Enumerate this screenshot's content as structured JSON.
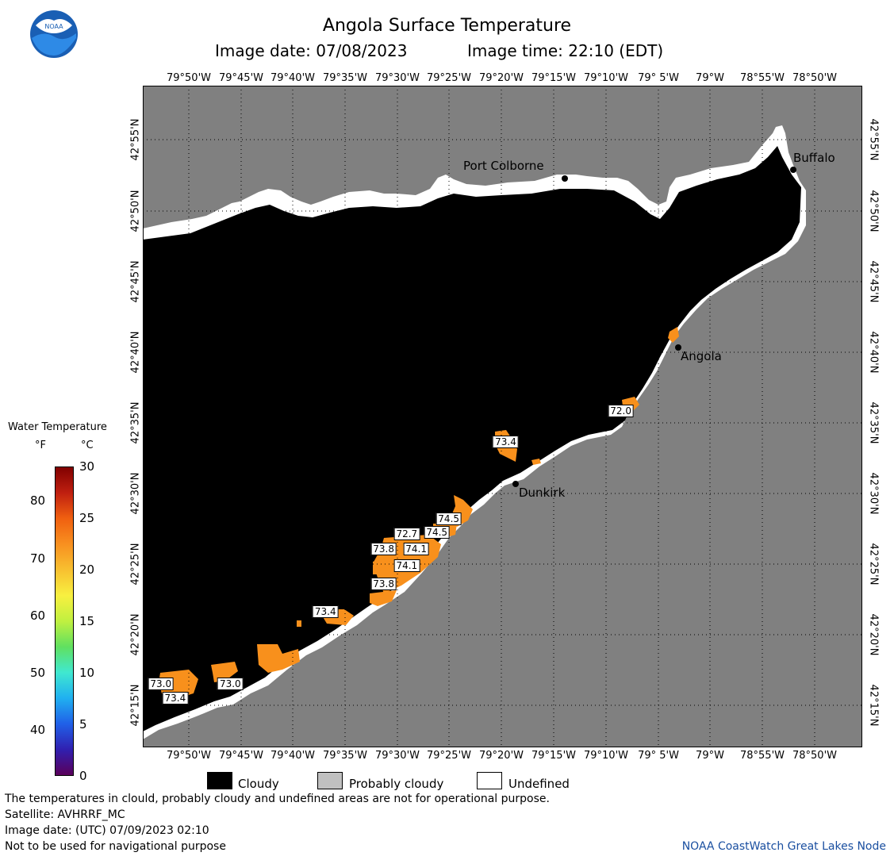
{
  "logo": {
    "text": "NOAA"
  },
  "title": "Angola Surface Temperature",
  "subtitle_date": "Image date: 07/08/2023",
  "subtitle_time": "Image time: 22:10 (EDT)",
  "lon_ticks": [
    "79°50'W",
    "79°45'W",
    "79°40'W",
    "79°35'W",
    "79°30'W",
    "79°25'W",
    "79°20'W",
    "79°15'W",
    "79°10'W",
    "79° 5'W",
    "79°W",
    "78°55'W",
    "78°50'W"
  ],
  "lat_ticks": [
    "42°55'N",
    "42°50'N",
    "42°45'N",
    "42°40'N",
    "42°35'N",
    "42°30'N",
    "42°25'N",
    "42°20'N",
    "42°15'N"
  ],
  "cities": {
    "port_colborne": "Port Colborne",
    "buffalo": "Buffalo",
    "angola": "Angola",
    "dunkirk": "Dunkirk"
  },
  "temperature_labels": [
    {
      "value": "73.4",
      "lon": -79.327,
      "lat": 42.56
    },
    {
      "value": "72.0",
      "lon": -79.143,
      "lat": 42.597
    },
    {
      "value": "74.5",
      "lon": -79.418,
      "lat": 42.47
    },
    {
      "value": "74.5",
      "lon": -79.437,
      "lat": 42.454
    },
    {
      "value": "72.7",
      "lon": -79.485,
      "lat": 42.452
    },
    {
      "value": "73.8",
      "lon": -79.522,
      "lat": 42.434
    },
    {
      "value": "74.1",
      "lon": -79.47,
      "lat": 42.434
    },
    {
      "value": "74.1",
      "lon": -79.485,
      "lat": 42.414
    },
    {
      "value": "73.8",
      "lon": -79.522,
      "lat": 42.393
    },
    {
      "value": "73.4",
      "lon": -79.615,
      "lat": 42.36
    },
    {
      "value": "73.0",
      "lon": -79.878,
      "lat": 42.275
    },
    {
      "value": "73.0",
      "lon": -79.767,
      "lat": 42.275
    },
    {
      "value": "73.4",
      "lon": -79.855,
      "lat": 42.258
    }
  ],
  "scale": {
    "title": "Water Temperature",
    "unit_f": "°F",
    "unit_c": "°C",
    "f_ticks": [
      40,
      50,
      60,
      70,
      80
    ],
    "c_ticks": [
      0,
      5,
      10,
      15,
      20,
      25,
      30
    ],
    "colors": [
      "#5a005a",
      "#3020b0",
      "#2060e8",
      "#20b0f0",
      "#40e8d0",
      "#60e060",
      "#c0f040",
      "#f8f040",
      "#f8c030",
      "#f89020",
      "#f06010",
      "#c02010",
      "#800000"
    ]
  },
  "legend": {
    "cloudy": "Cloudy",
    "probably_cloudy": "Probably cloudy",
    "undefined": "Undefined",
    "cloudy_color": "#000000",
    "probably_cloudy_color": "#c0c0c0",
    "undefined_color": "#ffffff"
  },
  "footer": {
    "line1": "The temperatures in clould, probably cloudy and undefined areas are not for operational purpose.",
    "line2": "Satellite: AVHRRF_MC",
    "line3": "Image date: (UTC) 07/09/2023  02:10",
    "line4": "Not to be used for navigational purpose",
    "credit": "NOAA CoastWatch Great Lakes Node"
  },
  "colors": {
    "land": "#808080",
    "cloud": "#000000",
    "warm_water": "#f8901c",
    "credit": "#1a4fa0"
  }
}
